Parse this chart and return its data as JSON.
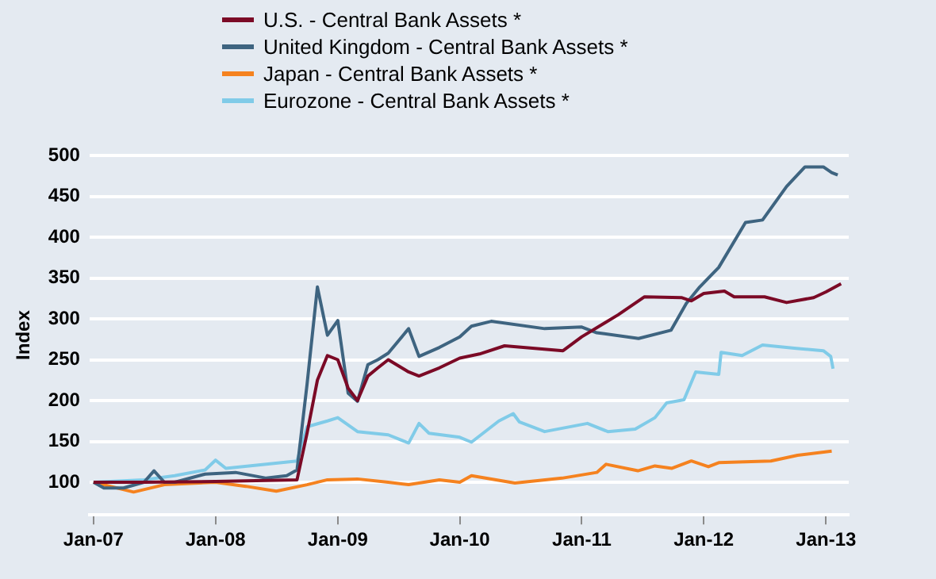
{
  "chart_data": {
    "type": "line",
    "ylabel": "Index",
    "legend": "top",
    "grid": "y",
    "marker": "none",
    "line_style": "solid",
    "xlim": [
      "2006-12-20",
      "2013-03-10"
    ],
    "xticks": [
      {
        "value": "2007-01-01",
        "label": "Jan-07"
      },
      {
        "value": "2008-01-01",
        "label": "Jan-08"
      },
      {
        "value": "2009-01-01",
        "label": "Jan-09"
      },
      {
        "value": "2010-01-01",
        "label": "Jan-10"
      },
      {
        "value": "2011-01-01",
        "label": "Jan-11"
      },
      {
        "value": "2012-01-01",
        "label": "Jan-12"
      },
      {
        "value": "2013-01-01",
        "label": "Jan-13"
      }
    ],
    "ylim": [
      60,
      500
    ],
    "yticks": [
      100,
      150,
      200,
      250,
      300,
      350,
      400,
      450,
      500
    ],
    "series": [
      {
        "name": "U.S. - Central Bank Assets *",
        "color": "#7b0a26",
        "x": [
          "2007-01-01",
          "2007-06-01",
          "2008-01-01",
          "2008-09-01",
          "2008-10-01",
          "2008-11-01",
          "2008-12-01",
          "2009-01-01",
          "2009-02-01",
          "2009-03-01",
          "2009-04-01",
          "2009-05-01",
          "2009-06-01",
          "2009-08-01",
          "2009-09-01",
          "2009-11-01",
          "2010-01-01",
          "2010-03-01",
          "2010-05-15",
          "2010-11-06",
          "2011-01-01",
          "2011-04-20",
          "2011-07-08",
          "2011-10-26",
          "2011-11-25",
          "2012-01-01",
          "2012-03-03",
          "2012-04-01",
          "2012-07-01",
          "2012-09-05",
          "2012-11-25",
          "2013-01-01",
          "2013-02-15"
        ],
        "values": [
          100,
          100,
          101,
          103,
          160,
          225,
          255,
          250,
          215,
          200,
          230,
          240,
          250,
          235,
          230,
          240,
          252,
          257,
          267,
          261,
          278,
          305,
          327,
          326,
          322,
          331,
          334,
          327,
          327,
          320,
          326,
          333,
          343
        ]
      },
      {
        "name": "United Kingdom - Central Bank Assets *",
        "color": "#3e6480",
        "x": [
          "2007-01-01",
          "2007-02-01",
          "2007-04-01",
          "2007-06-01",
          "2007-07-01",
          "2007-08-01",
          "2007-09-01",
          "2007-12-01",
          "2008-03-01",
          "2008-06-01",
          "2008-08-01",
          "2008-09-01",
          "2008-10-01",
          "2008-11-01",
          "2008-12-01",
          "2009-01-01",
          "2009-02-01",
          "2009-03-01",
          "2009-04-01",
          "2009-05-01",
          "2009-06-01",
          "2009-08-01",
          "2009-09-01",
          "2009-11-01",
          "2010-01-01",
          "2010-02-05",
          "2010-04-05",
          "2010-09-12",
          "2011-01-01",
          "2011-02-15",
          "2011-06-20",
          "2011-09-25",
          "2011-11-10",
          "2011-12-20",
          "2012-02-15",
          "2012-05-05",
          "2012-06-25",
          "2012-09-05",
          "2012-10-30",
          "2012-12-24",
          "2013-01-18",
          "2013-02-05"
        ],
        "values": [
          100,
          93,
          93,
          100,
          114,
          100,
          100,
          110,
          112,
          105,
          108,
          115,
          220,
          339,
          280,
          298,
          209,
          199,
          244,
          250,
          258,
          288,
          254,
          265,
          278,
          291,
          297,
          288,
          290,
          283,
          276,
          286,
          319,
          339,
          363,
          418,
          421,
          462,
          486,
          486,
          479,
          476
        ]
      },
      {
        "name": "Japan - Central Bank Assets *",
        "color": "#f5821f",
        "x": [
          "2007-01-01",
          "2007-05-01",
          "2007-08-01",
          "2008-01-01",
          "2008-04-01",
          "2008-07-01",
          "2008-10-01",
          "2008-12-01",
          "2009-03-01",
          "2009-06-01",
          "2009-08-01",
          "2009-11-01",
          "2010-01-01",
          "2010-02-05",
          "2010-06-15",
          "2010-11-03",
          "2011-02-15",
          "2011-03-15",
          "2011-06-18",
          "2011-08-08",
          "2011-09-28",
          "2011-11-25",
          "2012-01-15",
          "2012-02-15",
          "2012-07-20",
          "2012-10-08",
          "2013-01-18"
        ],
        "values": [
          100,
          88,
          97,
          100,
          95,
          89,
          97,
          103,
          104,
          100,
          97,
          103,
          100,
          108,
          99,
          105,
          112,
          122,
          114,
          120,
          117,
          126,
          119,
          124,
          126,
          133,
          138
        ]
      },
      {
        "name": "Eurozone - Central Bank Assets *",
        "color": "#80cbe8",
        "x": [
          "2007-01-01",
          "2007-06-01",
          "2007-09-01",
          "2007-12-01",
          "2008-01-01",
          "2008-02-01",
          "2008-06-01",
          "2008-09-01",
          "2008-10-01",
          "2008-12-01",
          "2009-01-01",
          "2009-03-01",
          "2009-06-01",
          "2009-08-01",
          "2009-09-01",
          "2009-10-01",
          "2010-01-01",
          "2010-02-05",
          "2010-04-28",
          "2010-06-10",
          "2010-06-28",
          "2010-09-12",
          "2011-01-18",
          "2011-03-20",
          "2011-06-10",
          "2011-08-08",
          "2011-09-12",
          "2011-11-03",
          "2011-12-08",
          "2012-02-15",
          "2012-02-22",
          "2012-04-25",
          "2012-06-25",
          "2012-09-28",
          "2012-12-24",
          "2013-01-15",
          "2013-01-22"
        ],
        "values": [
          100,
          103,
          108,
          115,
          127,
          117,
          122,
          126,
          168,
          175,
          179,
          162,
          158,
          148,
          172,
          160,
          155,
          149,
          175,
          184,
          174,
          162,
          172,
          162,
          165,
          179,
          197,
          201,
          235,
          232,
          259,
          255,
          268,
          264,
          261,
          254,
          239
        ]
      }
    ]
  }
}
